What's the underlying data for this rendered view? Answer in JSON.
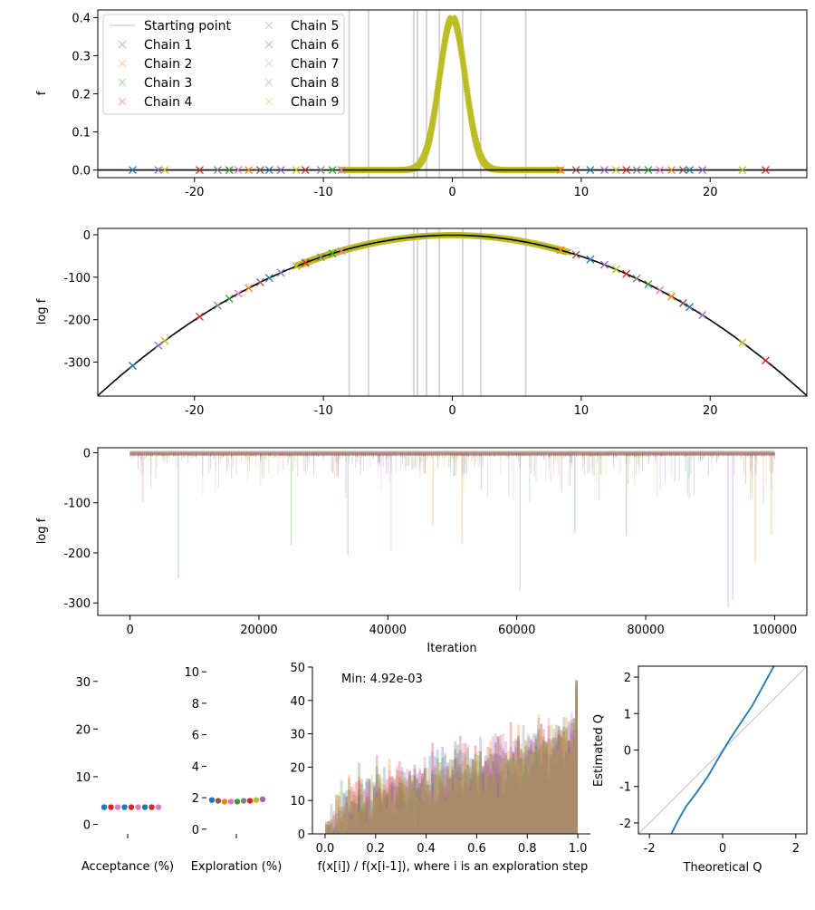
{
  "colors": {
    "chains": [
      "#1f77b4",
      "#ff7f0e",
      "#2ca02c",
      "#d62728",
      "#9467bd",
      "#8c564b",
      "#e377c2",
      "#7f7f7f",
      "#bcbd22"
    ],
    "start_line": "#d3d3d3",
    "curve": "#000000",
    "qq_line": "#1f77b4"
  },
  "chart_data": [
    {
      "id": "density",
      "type": "scatter",
      "ylabel": "f",
      "xlim": [
        -27.5,
        27.5
      ],
      "ylim": [
        -0.02,
        0.42
      ],
      "xticks": [
        "-20",
        "-10",
        "0",
        "10",
        "20"
      ],
      "yticks": [
        "0.0",
        "0.1",
        "0.2",
        "0.3",
        "0.4"
      ],
      "xtick_values": [
        -20,
        -10,
        0,
        10,
        20
      ],
      "ytick_values": [
        0,
        0.1,
        0.2,
        0.3,
        0.4
      ],
      "starting_points": [
        -8.0,
        -6.5,
        -3.0,
        -2.7,
        -2.0,
        -1.0,
        0.8,
        2.2,
        5.7
      ],
      "legend": {
        "placement": "top-left",
        "start_label": "Starting point",
        "chains": [
          "Chain 1",
          "Chain 2",
          "Chain 3",
          "Chain 4",
          "Chain 5",
          "Chain 6",
          "Chain 7",
          "Chain 8",
          "Chain 9"
        ]
      },
      "outlier_samples": [
        -24.8,
        -22.8,
        -22.3,
        -19.6,
        -18.2,
        -17.3,
        -16.6,
        -15.8,
        -14.9,
        -14.2,
        -13.3,
        -12.1,
        -11.4,
        -10.2,
        -9.3,
        -8.6,
        8.4,
        9.6,
        10.7,
        11.8,
        12.7,
        13.5,
        14.3,
        15.2,
        16.1,
        17.0,
        17.9,
        18.4,
        19.4,
        22.5,
        24.3
      ]
    },
    {
      "id": "log-density",
      "type": "line",
      "ylabel": "log f",
      "xlim": [
        -27.5,
        27.5
      ],
      "ylim": [
        -380,
        15
      ],
      "xticks": [
        "-20",
        "-10",
        "0",
        "10",
        "20"
      ],
      "yticks": [
        "0",
        "-100",
        "-200",
        "-300"
      ],
      "xtick_values": [
        -20,
        -10,
        0,
        10,
        20
      ],
      "ytick_values": [
        0,
        -100,
        -200,
        -300
      ],
      "starting_points": [
        -8.0,
        -6.5,
        -3.0,
        -2.7,
        -2.0,
        -1.0,
        0.8,
        2.2,
        5.7
      ]
    },
    {
      "id": "trace",
      "type": "line",
      "xlabel": "Iteration",
      "ylabel": "log f",
      "xlim": [
        -5000,
        105000
      ],
      "ylim": [
        -325,
        10
      ],
      "xticks": [
        "0",
        "20000",
        "40000",
        "60000",
        "80000",
        "100000"
      ],
      "yticks": [
        "0",
        "-100",
        "-200",
        "-300"
      ],
      "xtick_values": [
        0,
        20000,
        40000,
        60000,
        80000,
        100000
      ],
      "ytick_values": [
        0,
        -100,
        -200,
        -300
      ],
      "deep_spikes": [
        {
          "x": 7500,
          "y": -250,
          "chain": 2
        },
        {
          "x": 25000,
          "y": -185,
          "chain": 2
        },
        {
          "x": 33800,
          "y": -205,
          "chain": 7
        },
        {
          "x": 40500,
          "y": -195,
          "chain": 6
        },
        {
          "x": 47000,
          "y": -145,
          "chain": 1
        },
        {
          "x": 51500,
          "y": -180,
          "chain": 1
        },
        {
          "x": 60500,
          "y": -275,
          "chain": 7
        },
        {
          "x": 69000,
          "y": -160,
          "chain": 0
        },
        {
          "x": 77000,
          "y": -165,
          "chain": 2
        },
        {
          "x": 92800,
          "y": -310,
          "chain": 4
        },
        {
          "x": 93500,
          "y": -295,
          "chain": 4
        },
        {
          "x": 97000,
          "y": -220,
          "chain": 1
        },
        {
          "x": 99500,
          "y": -165,
          "chain": 1
        }
      ]
    },
    {
      "id": "acceptance",
      "type": "scatter",
      "xlabel": "Acceptance (%)",
      "ylim": [
        -2,
        33
      ],
      "yticks": [
        "0",
        "10",
        "20",
        "30"
      ],
      "ytick_values": [
        0,
        10,
        20,
        30
      ],
      "values": [
        3.6,
        3.6,
        3.6,
        3.6,
        3.6,
        3.6,
        3.6,
        3.6,
        3.6
      ]
    },
    {
      "id": "exploration",
      "type": "scatter",
      "xlabel": "Exploration (%)",
      "ylim": [
        -0.3,
        10.3
      ],
      "yticks": [
        "0",
        "2",
        "4",
        "6",
        "8",
        "10"
      ],
      "ytick_values": [
        0,
        2,
        4,
        6,
        8,
        10
      ],
      "values": [
        1.85,
        1.8,
        1.75,
        1.75,
        1.75,
        1.8,
        1.8,
        1.85,
        1.9
      ]
    },
    {
      "id": "ratio-histogram",
      "type": "bar",
      "xlabel": "f(x[i]) / f(x[i-1]), where i is an exploration step",
      "annotation": "Min: 4.92e-03",
      "xlim": [
        -0.05,
        1.05
      ],
      "ylim": [
        0,
        50
      ],
      "xticks": [
        "0.0",
        "0.2",
        "0.4",
        "0.6",
        "0.8",
        "1.0"
      ],
      "yticks": [
        "0",
        "10",
        "20",
        "30",
        "40",
        "50"
      ],
      "xtick_values": [
        0,
        0.2,
        0.4,
        0.6,
        0.8,
        1.0
      ],
      "ytick_values": [
        0,
        10,
        20,
        30,
        40,
        50
      ],
      "trend": {
        "x": [
          0,
          0.1,
          0.3,
          0.5,
          0.7,
          0.9,
          1.0
        ],
        "y": [
          0,
          10,
          14,
          18,
          22,
          26,
          32
        ]
      }
    },
    {
      "id": "qq-plot",
      "type": "line",
      "xlabel": "Theoretical Q",
      "ylabel": "Estimated Q",
      "xlim": [
        -2.3,
        2.3
      ],
      "ylim": [
        -2.3,
        2.3
      ],
      "xticks": [
        "-2",
        "0",
        "2"
      ],
      "yticks": [
        "-2",
        "-1",
        "0",
        "1",
        "2"
      ],
      "xtick_values": [
        -2,
        0,
        2
      ],
      "ytick_values": [
        -2,
        -1,
        0,
        1,
        2
      ],
      "series": [
        {
          "name": "estimated",
          "x": [
            -1.4,
            -1.2,
            -1.0,
            -0.7,
            -0.4,
            -0.1,
            0.2,
            0.5,
            0.8,
            1.1,
            1.4
          ],
          "y": [
            -2.3,
            -1.9,
            -1.55,
            -1.15,
            -0.72,
            -0.2,
            0.3,
            0.75,
            1.2,
            1.75,
            2.3
          ]
        }
      ]
    }
  ]
}
